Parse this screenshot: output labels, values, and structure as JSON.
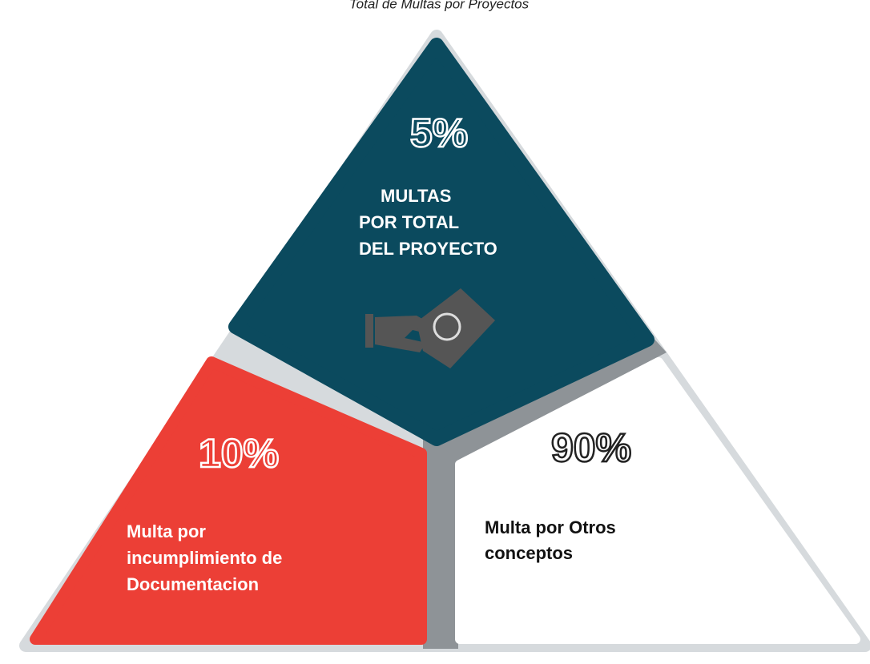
{
  "title": "Total de Multas por Proyectos",
  "segments": [
    {
      "percent": "5%",
      "label": [
        "MULTAS",
        "POR TOTAL",
        "DEL PROYECTO"
      ]
    },
    {
      "percent": "10%",
      "label": [
        "Multa por",
        "incumplimiento de",
        "Documentacion"
      ]
    },
    {
      "percent": "90%",
      "label": [
        "Multa por Otros",
        "conceptos"
      ]
    }
  ]
}
